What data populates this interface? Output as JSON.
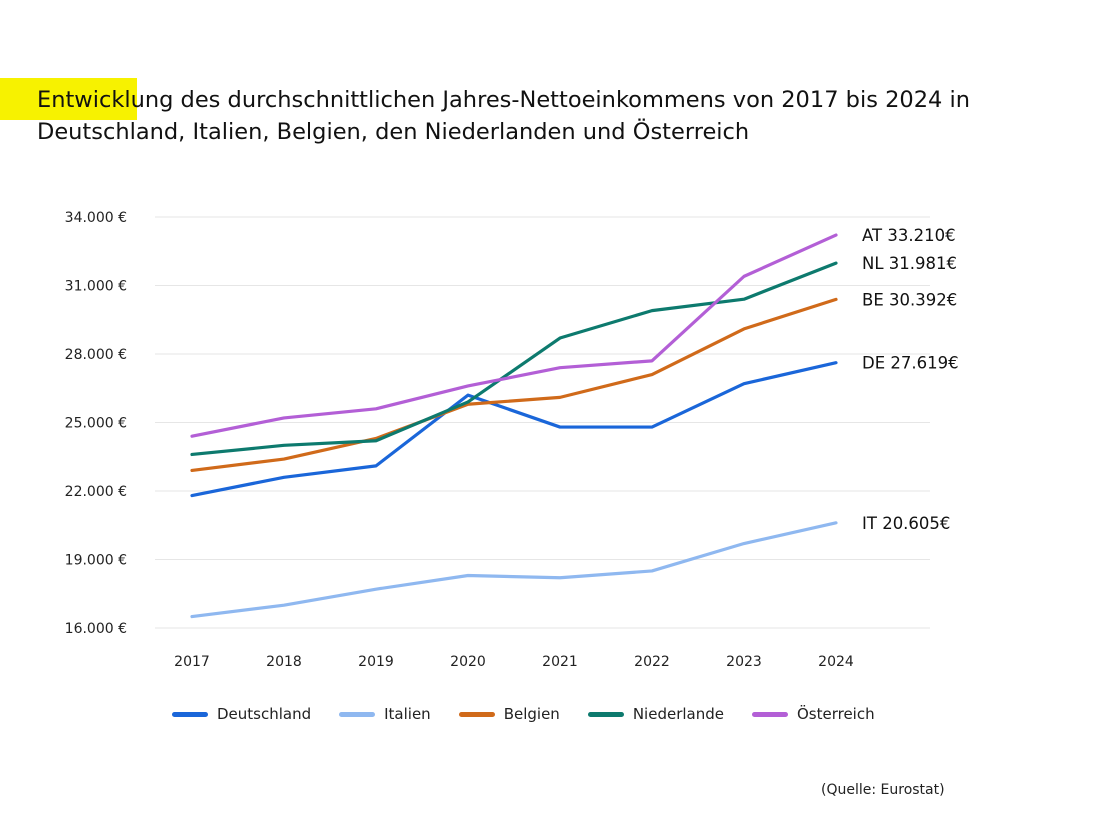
{
  "title": "Entwicklung des durchschnittlichen Jahres-Nettoeinkommens von 2017 bis 2024 in Deutschland, Italien, Belgien, den Niederlanden und Österreich",
  "source": "(Quelle: Eurostat)",
  "colors": {
    "highlight": "#f7f200",
    "grid": "#e6e6e6"
  },
  "chart_data": {
    "type": "line",
    "title": "Entwicklung des durchschnittlichen Jahres-Nettoeinkommens von 2017 bis 2024 in Deutschland, Italien, Belgien, den Niederlanden und Österreich",
    "x": [
      "2017",
      "2018",
      "2019",
      "2020",
      "2021",
      "2022",
      "2023",
      "2024"
    ],
    "xlabel": "",
    "ylabel": "",
    "ylim": [
      16000,
      34000
    ],
    "yticks": [
      16000,
      19000,
      22000,
      25000,
      28000,
      31000,
      34000
    ],
    "ytick_labels": [
      "16.000 €",
      "19.000 €",
      "22.000 €",
      "25.000 €",
      "28.000 €",
      "31.000 €",
      "34.000 €"
    ],
    "grid": true,
    "legend_position": "bottom",
    "series": [
      {
        "name": "Deutschland",
        "color": "#1a66d9",
        "values": [
          21800,
          22600,
          23100,
          26200,
          24800,
          24800,
          26700,
          27619
        ],
        "end_label": "DE 27.619€"
      },
      {
        "name": "Italien",
        "color": "#8fb8f0",
        "values": [
          16500,
          17000,
          17700,
          18300,
          18200,
          18500,
          19700,
          20605
        ],
        "end_label": "IT 20.605€"
      },
      {
        "name": "Belgien",
        "color": "#d06a1a",
        "values": [
          22900,
          23400,
          24300,
          25800,
          26100,
          27100,
          29100,
          30392
        ],
        "end_label": "BE 30.392€"
      },
      {
        "name": "Niederlande",
        "color": "#0d7a6e",
        "values": [
          23600,
          24000,
          24200,
          25900,
          28700,
          29900,
          30400,
          31981
        ],
        "end_label": "NL 31.981€"
      },
      {
        "name": "Österreich",
        "color": "#b35fd6",
        "values": [
          24400,
          25200,
          25600,
          26600,
          27400,
          27700,
          31400,
          33210
        ],
        "end_label": "AT 33.210€"
      }
    ]
  }
}
